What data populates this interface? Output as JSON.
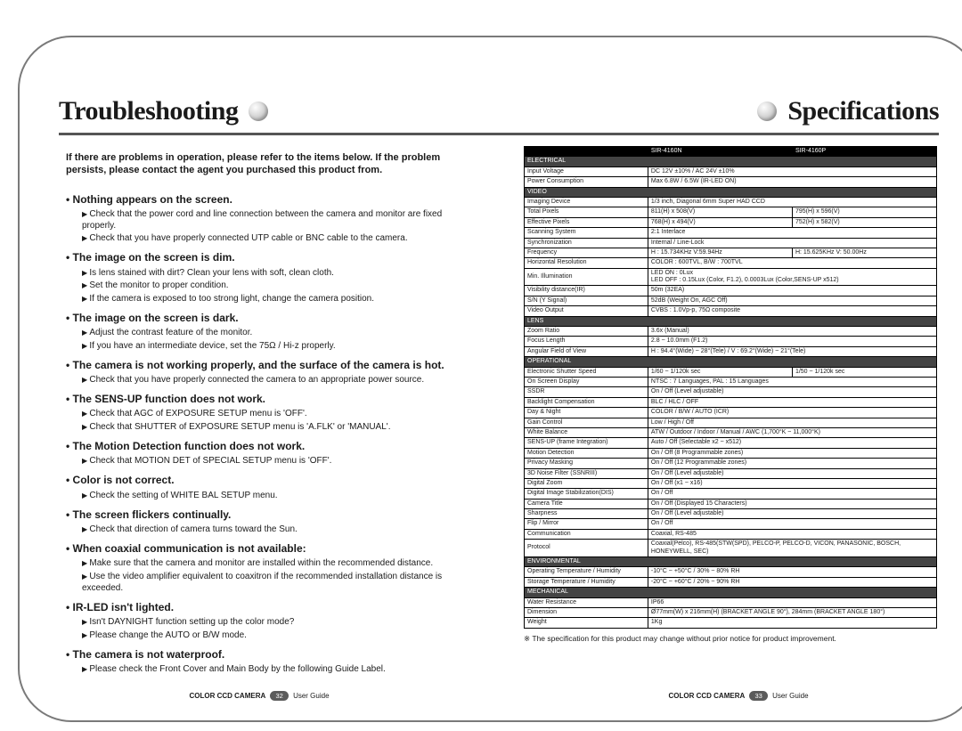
{
  "headings": {
    "left": "Troubleshooting",
    "right": "Specifications"
  },
  "colors": {
    "rule": "#555555",
    "ink": "#1a1a1a",
    "tableHeaderBg": "#000000",
    "tableHeaderFg": "#ffffff",
    "sectionBg": "#444444"
  },
  "intro": "If there are problems in operation, please refer to the items below. If the problem persists, please contact the agent you purchased this product from.",
  "issues": [
    {
      "h": "Nothing appears on the screen.",
      "steps": [
        "Check that the power cord and line connection between the camera and monitor are fixed properly.",
        "Check that you have properly connected UTP cable or BNC cable to the camera."
      ]
    },
    {
      "h": "The image on the screen is dim.",
      "steps": [
        "Is lens stained with dirt? Clean your lens with soft, clean cloth.",
        "Set the monitor to proper condition.",
        "If the camera is exposed to too strong light, change the camera position."
      ]
    },
    {
      "h": "The image on the screen is dark.",
      "steps": [
        "Adjust the contrast feature of the monitor.",
        "If you have an intermediate device, set the 75Ω / Hi-z properly."
      ]
    },
    {
      "h": "The camera is not working properly, and the surface of the camera is hot.",
      "steps": [
        "Check that you have properly connected the camera to an appropriate power source."
      ]
    },
    {
      "h": "The SENS-UP function does not work.",
      "steps": [
        "Check that AGC of EXPOSURE SETUP menu is 'OFF'.",
        "Check that SHUTTER of EXPOSURE SETUP menu is 'A.FLK' or 'MANUAL'."
      ]
    },
    {
      "h": "The Motion Detection function does not work.",
      "steps": [
        "Check that MOTION DET of SPECIAL SETUP menu is 'OFF'."
      ]
    },
    {
      "h": "Color is not correct.",
      "steps": [
        "Check the setting of WHITE BAL SETUP menu."
      ]
    },
    {
      "h": "The screen flickers continually.",
      "steps": [
        "Check that direction of camera turns toward the Sun."
      ]
    },
    {
      "h": "When coaxial communication is not available:",
      "steps": [
        "Make sure that the camera and monitor are installed within the recommended distance.",
        "Use the video amplifier equivalent to coaxitron if the recommended installation distance is exceeded."
      ]
    },
    {
      "h": "IR-LED isn't lighted.",
      "steps": [
        "Isn't DAYNIGHT function setting up the color mode?",
        "Please change the AUTO or B/W mode."
      ]
    },
    {
      "h": "The camera is not waterproof.",
      "steps": [
        "Please check the Front Cover and Main Body by the following Guide Label."
      ]
    }
  ],
  "spec": {
    "head": {
      "label": "",
      "col1": "SIR-4160N",
      "col2": "SIR-4160P"
    },
    "sections": [
      {
        "title": "ELECTRICAL",
        "rows": [
          {
            "k": "Input Voltage",
            "v": "DC 12V ±10% / AC 24V ±10%"
          },
          {
            "k": "Power Consumption",
            "v": "Max 6.8W / 6.5W (IR-LED ON)"
          }
        ]
      },
      {
        "title": "VIDEO",
        "rows": [
          {
            "k": "Imaging Device",
            "v": "1/3 inch, Diagonal 6mm Super HAD CCD"
          },
          {
            "k": "Total Pixels",
            "v1": "811(H) x 508(V)",
            "v2": "795(H) x 596(V)"
          },
          {
            "k": "Effective Pixels",
            "v1": "768(H) x 494(V)",
            "v2": "752(H) x 582(V)"
          },
          {
            "k": "Scanning System",
            "v": "2:1 Interlace"
          },
          {
            "k": "Synchronization",
            "v": "Internal / Line-Lock"
          },
          {
            "k": "Frequency",
            "v1": "H : 15.734KHz V:59.94Hz",
            "v2": "H: 15.625KHz V: 50.00Hz"
          },
          {
            "k": "Horizontal Resolution",
            "v": "COLOR : 600TVL, B/W : 700TVL"
          },
          {
            "k": "Min. Illumination",
            "v": "LED ON : 0Lux\nLED OFF : 0.15Lux (Color, F1.2), 0.0003Lux (Color,SENS-UP x512)"
          },
          {
            "k": "Visibility distance(IR)",
            "v": "50m (32EA)"
          },
          {
            "k": "S/N (Y Signal)",
            "v": "52dB (Weight On, AGC Off)"
          },
          {
            "k": "Video Output",
            "v": "CVBS : 1.0Vp-p, 75Ω composite"
          }
        ]
      },
      {
        "title": "LENS",
        "rows": [
          {
            "k": "Zoom Ratio",
            "v": "3.6x (Manual)"
          },
          {
            "k": "Focus Length",
            "v": "2.8 ~ 10.0mm (F1.2)"
          },
          {
            "k": "Angular Field of View",
            "v": "H : 94.4°(Wide) ~ 28°(Tele) / V : 69.2°(Wide) ~ 21°(Tele)"
          }
        ]
      },
      {
        "title": "OPERATIONAL",
        "rows": [
          {
            "k": "Electronic Shutter Speed",
            "v1": "1/60 ~ 1/120k sec",
            "v2": "1/50 ~ 1/120k sec"
          },
          {
            "k": "On Screen Display",
            "v": "NTSC : 7 Languages, PAL : 15 Languages"
          },
          {
            "k": "SSDR",
            "v": "On / Off (Level adjustable)"
          },
          {
            "k": "Backlight Compensation",
            "v": "BLC / HLC / OFF"
          },
          {
            "k": "Day & Night",
            "v": "COLOR / B/W / AUTO (ICR)"
          },
          {
            "k": "Gain Control",
            "v": "Low / High / Off"
          },
          {
            "k": "White Balance",
            "v": "ATW / Outdoor / Indoor / Manual / AWC (1,700°K ~ 11,000°K)"
          },
          {
            "k": "SENS-UP (frame Integration)",
            "v": "Auto / Off (Selectable x2 ~ x512)"
          },
          {
            "k": "Motion Detection",
            "v": "On / Off (8 Programmable zones)"
          },
          {
            "k": "Privacy Masking",
            "v": "On / Off (12 Programmable zones)"
          },
          {
            "k": "3D Noise Filter (SSNRIII)",
            "v": "On / Off (Level adjustable)"
          },
          {
            "k": "Digital Zoom",
            "v": "On / Off (x1 ~ x16)"
          },
          {
            "k": "Digital Image Stabilization(DIS)",
            "v": "On / Off"
          },
          {
            "k": "Camera Title",
            "v": "On / Off (Displayed 15 Characters)"
          },
          {
            "k": "Sharpness",
            "v": "On / Off (Level adjustable)"
          },
          {
            "k": "Flip / Mirror",
            "v": "On / Off"
          },
          {
            "k": "Communication",
            "v": "Coaxial, RS-485"
          },
          {
            "k": "Protocol",
            "v": "Coaxial(Pelco), RS-485(STW(SPD), PELCO-P, PELCO-D, VICON, PANASONIC, BOSCH, HONEYWELL, SEC)"
          }
        ]
      },
      {
        "title": "ENVIRONMENTAL",
        "rows": [
          {
            "k": "Operating Temperature / Humidity",
            "v": "-10°C ~ +50°C / 30% ~ 80% RH"
          },
          {
            "k": "Storage Temperature / Humidity",
            "v": "-20°C ~ +60°C / 20% ~ 90% RH"
          }
        ]
      },
      {
        "title": "MECHANICAL",
        "rows": [
          {
            "k": "Water Resistance",
            "v": "IP66"
          },
          {
            "k": "Dimension",
            "v": "Ø77mm(W) x 216mm(H) (BRACKET ANGLE 90°), 284mm (BRACKET ANGLE 180°)"
          },
          {
            "k": "Weight",
            "v": "1Kg"
          }
        ]
      }
    ],
    "note": "※ The specification for this product may change without prior notice for product improvement."
  },
  "footer": {
    "leftBefore": "COLOR CCD CAMERA",
    "leftPage": "32",
    "leftAfter": "User Guide",
    "rightBefore": "COLOR CCD CAMERA",
    "rightPage": "33",
    "rightAfter": "User Guide"
  }
}
